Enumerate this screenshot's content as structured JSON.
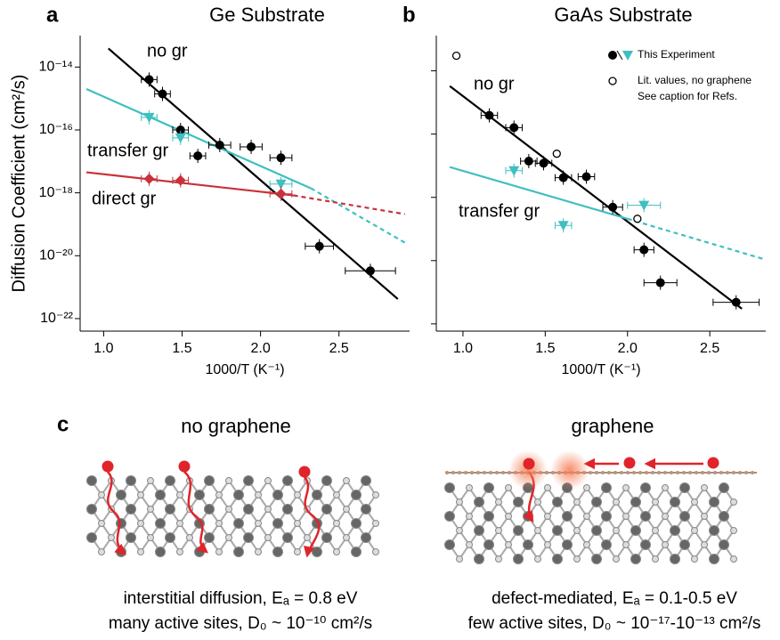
{
  "chart_data": [
    {
      "type": "scatter",
      "panel_label": "a",
      "title": "Ge Substrate",
      "xlabel": "1000/T (K⁻¹)",
      "ylabel": "Diffusion Coefficient (cm²/s)",
      "xlim": [
        0.85,
        2.95
      ],
      "ylim": [
        4e-23,
        1e-13
      ],
      "yscale": "log",
      "xticks": [
        {
          "value": 1,
          "label": "1.0"
        },
        {
          "value": 1.5,
          "label": "1.5"
        },
        {
          "value": 2,
          "label": "2.0"
        },
        {
          "value": 2.5,
          "label": "2.5"
        }
      ],
      "yticks": [
        {
          "value": 1e-14,
          "label": "10⁻¹⁴"
        },
        {
          "value": 1e-16,
          "label": "10⁻¹⁶"
        },
        {
          "value": 1e-18,
          "label": "10⁻¹⁸"
        },
        {
          "value": 1e-20,
          "label": "10⁻²⁰"
        },
        {
          "value": 1e-22,
          "label": "10⁻²²"
        }
      ],
      "series": [
        {
          "name": "no gr",
          "color": "#000000",
          "marker": "circle",
          "x": [
            1.29,
            1.375,
            1.49,
            1.6,
            1.74,
            1.94,
            2.13,
            2.375,
            2.7
          ],
          "values": [
            4e-15,
            1.4e-15,
            1e-16,
            1.5e-17,
            3.3e-17,
            2.9e-17,
            1.3e-17,
            2e-20,
            3.3e-21
          ],
          "xerr": [
            0.05,
            0.05,
            0.05,
            0.05,
            0.07,
            0.07,
            0.07,
            0.09,
            0.16
          ]
        },
        {
          "name": "transfer gr",
          "color": "#3fbfbf",
          "marker": "triangle",
          "x": [
            1.29,
            1.49,
            2.13
          ],
          "values": [
            2.5e-16,
            5.6e-17,
            1.9e-18
          ],
          "xerr": [
            0.05,
            0.05,
            0.07
          ]
        },
        {
          "name": "direct gr",
          "color": "#c8323c",
          "marker": "diamond",
          "x": [
            1.29,
            1.49,
            2.13
          ],
          "values": [
            2.8e-18,
            2.5e-18,
            9.3e-19
          ],
          "xerr": [
            0.05,
            0.05,
            0.07
          ]
        }
      ],
      "fits": [
        {
          "color": "#000000",
          "style": "solid",
          "x": [
            1.03,
            2.875
          ],
          "values": [
            3.9e-14,
            4.2e-22
          ]
        },
        {
          "color": "#3fbfbf",
          "style": "solid",
          "x": [
            0.89,
            2.32
          ],
          "values": [
            2e-15,
            1.4e-18
          ]
        },
        {
          "color": "#3fbfbf",
          "style": "dashed",
          "x": [
            2.32,
            2.92
          ],
          "values": [
            1.4e-18,
            2.6e-20
          ]
        },
        {
          "color": "#c8323c",
          "style": "solid",
          "x": [
            0.89,
            2.21
          ],
          "values": [
            4.5e-18,
            8.3e-19
          ]
        },
        {
          "color": "#c8323c",
          "style": "dashed",
          "x": [
            2.21,
            2.92
          ],
          "values": [
            8.3e-19,
            2.1e-19
          ]
        }
      ]
    },
    {
      "type": "scatter",
      "panel_label": "b",
      "title": "GaAs Substrate",
      "xlabel": "1000/T (K⁻¹)",
      "xlim": [
        0.838,
        2.84
      ],
      "ylim": [
        5.9e-23,
        1.3e-13
      ],
      "yscale": "log",
      "ytick_labels": false,
      "xticks": [
        {
          "value": 1,
          "label": "1.0"
        },
        {
          "value": 1.5,
          "label": "1.5"
        },
        {
          "value": 2,
          "label": "2.0"
        },
        {
          "value": 2.5,
          "label": "2.5"
        }
      ],
      "yticks": [
        1e-14,
        1e-16,
        1e-18,
        1e-20,
        1e-22
      ],
      "legend": {
        "corner": "upper right",
        "label": "This Experiment",
        "note": "See caption for Refs."
      },
      "series": [
        {
          "name": "no gr",
          "color": "#000000",
          "marker": "circle",
          "x": [
            1.16,
            1.31,
            1.4,
            1.49,
            1.61,
            1.75,
            1.91,
            2.1,
            2.2,
            2.66
          ],
          "values": [
            3.9e-16,
            1.6e-16,
            1.4e-17,
            1.2e-17,
            4.2e-18,
            4.5e-18,
            4.9e-19,
            2.2e-20,
            2e-21,
            4.8e-22
          ],
          "xerr": [
            0.05,
            0.05,
            0.05,
            0.05,
            0.05,
            0.05,
            0.06,
            0.06,
            0.1,
            0.14
          ]
        },
        {
          "name": "transfer gr",
          "color": "#3fbfbf",
          "marker": "triangle",
          "x": [
            1.31,
            1.61,
            2.1
          ],
          "values": [
            7e-18,
            1.3e-19,
            5.6e-19
          ],
          "xerr": [
            0.05,
            0.05,
            0.1
          ]
        },
        {
          "name": "Lit. values, no graphene",
          "color": "#000000",
          "marker": "open-circle",
          "x": [
            0.96,
            1.57,
            2.06
          ],
          "values": [
            3e-14,
            2.4e-17,
            2.1e-19
          ]
        }
      ],
      "fits": [
        {
          "color": "#000000",
          "style": "solid",
          "x": [
            0.92,
            2.695
          ],
          "values": [
            3.3e-15,
            3e-22
          ]
        },
        {
          "color": "#3fbfbf",
          "style": "solid",
          "x": [
            0.92,
            2.0
          ],
          "values": [
            9.1e-18,
            2.1e-19
          ]
        },
        {
          "color": "#3fbfbf",
          "style": "dashed",
          "x": [
            2.0,
            2.84
          ],
          "values": [
            2.1e-19,
            1.07e-20
          ]
        }
      ]
    }
  ],
  "diagram": {
    "panel_label": "c",
    "left": {
      "title": "no graphene",
      "line1": "interstitial diffusion, Eₐ = 0.8 eV",
      "line2": "many active sites, D₀ ~ 10⁻¹⁰ cm²/s"
    },
    "right": {
      "title": "graphene",
      "line1": "defect-mediated, Eₐ = 0.1-0.5 eV",
      "line2": "few active sites, D₀ ~ 10⁻¹⁷-10⁻¹³ cm²/s"
    }
  }
}
